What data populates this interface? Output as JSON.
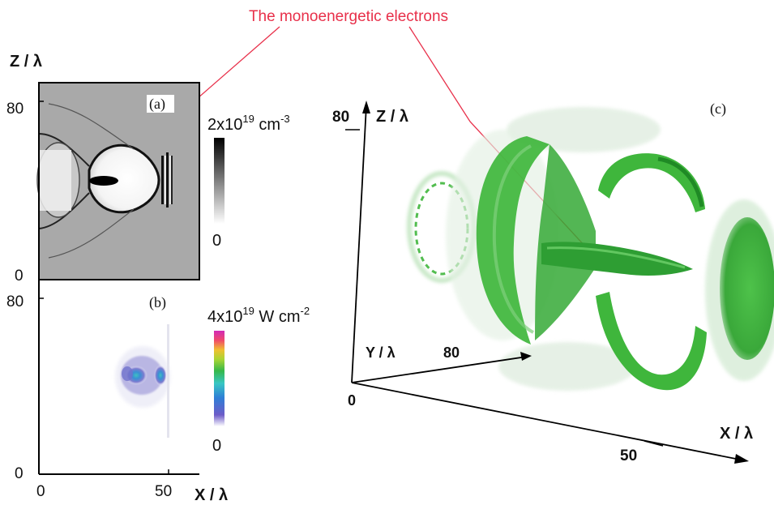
{
  "annotation": {
    "text": "The monoenergetic electrons",
    "color": "#e8304a"
  },
  "panel_a": {
    "letter": "(a)",
    "z_axis_label": "Z / λ",
    "z_tick_top": "80",
    "z_tick_bottom": "0",
    "colorbar_max_label": "2x10",
    "colorbar_max_exp": "19",
    "colorbar_max_unit": " cm",
    "colorbar_max_unit_exp": "-3",
    "colorbar_min_label": "0"
  },
  "panel_b": {
    "letter": "(b)",
    "z_tick_top": "80",
    "z_tick_bottom": "0",
    "x_tick_left": "0",
    "x_tick_right": "50",
    "x_axis_label": "X / λ",
    "colorbar_max_label": "4x10",
    "colorbar_max_exp": "19",
    "colorbar_max_unit": " W cm",
    "colorbar_max_unit_exp": "-2",
    "colorbar_min_label": "0"
  },
  "panel_c": {
    "letter": "(c)",
    "z_axis_label": "Z / λ",
    "z_tick": "80",
    "y_axis_label": "Y / λ",
    "y_tick": "80",
    "origin_label": "0",
    "x_axis_label": "X / λ",
    "x_tick": "50"
  },
  "colors": {
    "density_background": "#a9a9a9",
    "iso_green": "#3fb63c",
    "iso_green_dark": "#1f8a25",
    "intensity_bar": [
      "#ffffff",
      "#6d5bc8",
      "#2f7fd6",
      "#38c6c3",
      "#35b84a",
      "#a8d534",
      "#f0c030",
      "#f04a6a",
      "#d22ab8"
    ]
  }
}
